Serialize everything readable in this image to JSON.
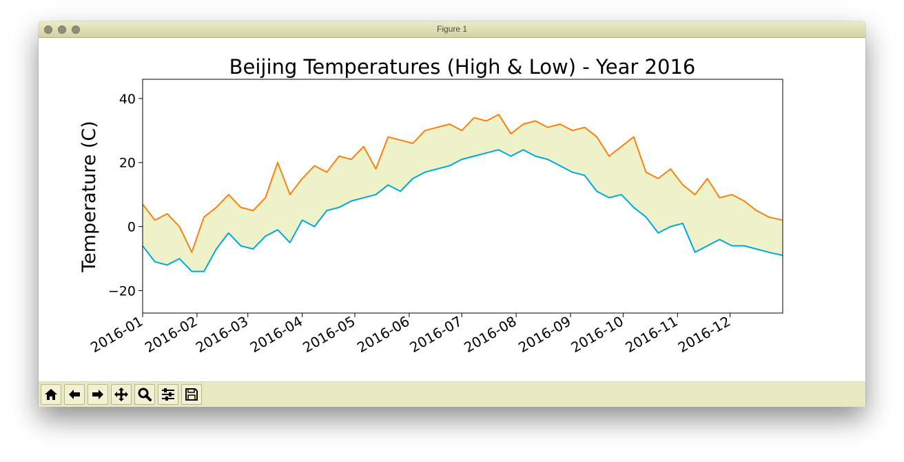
{
  "window": {
    "title": "Figure 1"
  },
  "toolbar": {
    "buttons": [
      {
        "name": "home-button",
        "icon": "home-icon"
      },
      {
        "name": "back-button",
        "icon": "arrow-left-icon"
      },
      {
        "name": "forward-button",
        "icon": "arrow-right-icon"
      },
      {
        "name": "pan-button",
        "icon": "move-icon"
      },
      {
        "name": "zoom-button",
        "icon": "magnifier-icon"
      },
      {
        "name": "configure-subplots-button",
        "icon": "sliders-icon"
      },
      {
        "name": "save-button",
        "icon": "floppy-disk-icon"
      }
    ]
  },
  "chart_data": {
    "type": "line",
    "title": "Beijing Temperatures (High & Low) - Year 2016",
    "xlabel": "",
    "ylabel": "Temperature (C)",
    "xlim": [
      "2016-01-01",
      "2016-12-31"
    ],
    "ylim": [
      -27,
      46
    ],
    "yticks": [
      -20,
      0,
      20,
      40
    ],
    "xtick_labels": [
      "2016-01",
      "2016-02",
      "2016-03",
      "2016-04",
      "2016-05",
      "2016-06",
      "2016-07",
      "2016-08",
      "2016-09",
      "2016-10",
      "2016-11",
      "2016-12"
    ],
    "fill_between": {
      "color": "#eef2c8"
    },
    "grid": false,
    "sampling": "weekly (approximate, read from plot)",
    "x": [
      "2016-01-01",
      "2016-01-08",
      "2016-01-15",
      "2016-01-22",
      "2016-01-29",
      "2016-02-05",
      "2016-02-12",
      "2016-02-19",
      "2016-02-26",
      "2016-03-04",
      "2016-03-11",
      "2016-03-18",
      "2016-03-25",
      "2016-04-01",
      "2016-04-08",
      "2016-04-15",
      "2016-04-22",
      "2016-04-29",
      "2016-05-06",
      "2016-05-13",
      "2016-05-20",
      "2016-05-27",
      "2016-06-03",
      "2016-06-10",
      "2016-06-17",
      "2016-06-24",
      "2016-07-01",
      "2016-07-08",
      "2016-07-15",
      "2016-07-22",
      "2016-07-29",
      "2016-08-05",
      "2016-08-12",
      "2016-08-19",
      "2016-08-26",
      "2016-09-02",
      "2016-09-09",
      "2016-09-16",
      "2016-09-23",
      "2016-09-30",
      "2016-10-07",
      "2016-10-14",
      "2016-10-21",
      "2016-10-28",
      "2016-11-04",
      "2016-11-11",
      "2016-11-18",
      "2016-11-25",
      "2016-12-02",
      "2016-12-09",
      "2016-12-16",
      "2016-12-23",
      "2016-12-31"
    ],
    "series": [
      {
        "name": "",
        "color": "#ff7f0e",
        "values": [
          7,
          2,
          4,
          0,
          -8,
          3,
          6,
          10,
          6,
          5,
          9,
          20,
          10,
          15,
          19,
          17,
          22,
          21,
          25,
          18,
          28,
          27,
          26,
          30,
          31,
          32,
          30,
          34,
          33,
          35,
          29,
          32,
          33,
          31,
          32,
          30,
          31,
          28,
          22,
          25,
          28,
          17,
          15,
          18,
          13,
          10,
          15,
          9,
          10,
          8,
          5,
          3,
          2
        ]
      },
      {
        "name": "",
        "color": "#00a6e0",
        "values": [
          -6,
          -11,
          -12,
          -10,
          -14,
          -14,
          -7,
          -2,
          -6,
          -7,
          -3,
          -1,
          -5,
          2,
          0,
          5,
          6,
          8,
          9,
          10,
          13,
          11,
          15,
          17,
          18,
          19,
          21,
          22,
          23,
          24,
          22,
          24,
          22,
          21,
          19,
          17,
          16,
          11,
          9,
          10,
          6,
          3,
          -2,
          0,
          1,
          -8,
          -6,
          -4,
          -6,
          -6,
          -7,
          -8,
          -9
        ]
      }
    ]
  }
}
